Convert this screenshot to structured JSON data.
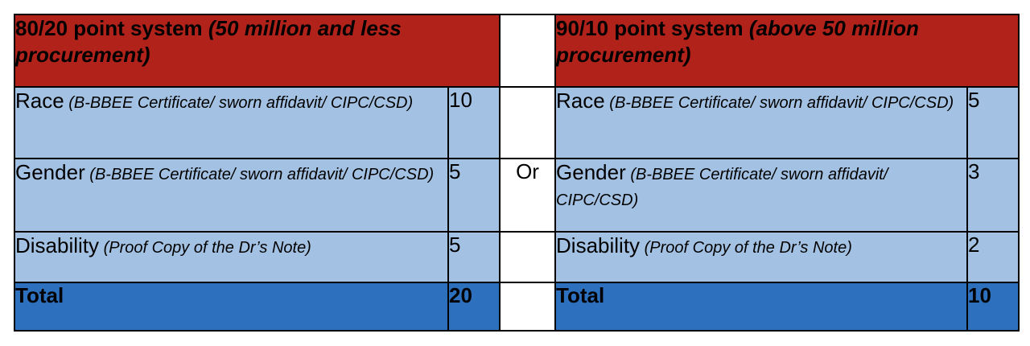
{
  "left": {
    "header_bold": "80/20 point system ",
    "header_italic": "(50 million and less procurement)",
    "rows": [
      {
        "label": "Race",
        "detail": "(B-BBEE Certificate/ sworn affidavit/ CIPC/CSD)",
        "points": "10"
      },
      {
        "label": "Gender",
        "detail": "(B-BBEE Certificate/ sworn affidavit/ CIPC/CSD)",
        "points": "5"
      },
      {
        "label": "Disability",
        "detail": "(Proof Copy of the Dr’s Note)",
        "points": "5"
      }
    ],
    "total_label": "Total",
    "total_points": "20"
  },
  "separator": "Or",
  "right": {
    "header_bold": "90/10 point system ",
    "header_italic": "(above 50 million procurement)",
    "rows": [
      {
        "label": "Race",
        "detail": "(B-BBEE Certificate/ sworn affidavit/ CIPC/CSD)",
        "points": "5"
      },
      {
        "label": "Gender",
        "detail": "(B-BBEE Certificate/ sworn affidavit/ CIPC/CSD)",
        "points": "3"
      },
      {
        "label": "Disability",
        "detail": "(Proof Copy of the Dr’s Note)",
        "points": "2"
      }
    ],
    "total_label": "Total",
    "total_points": "10"
  },
  "colors": {
    "header": "#b1221b",
    "row": "#a3c1e2",
    "total": "#2d70bd"
  }
}
